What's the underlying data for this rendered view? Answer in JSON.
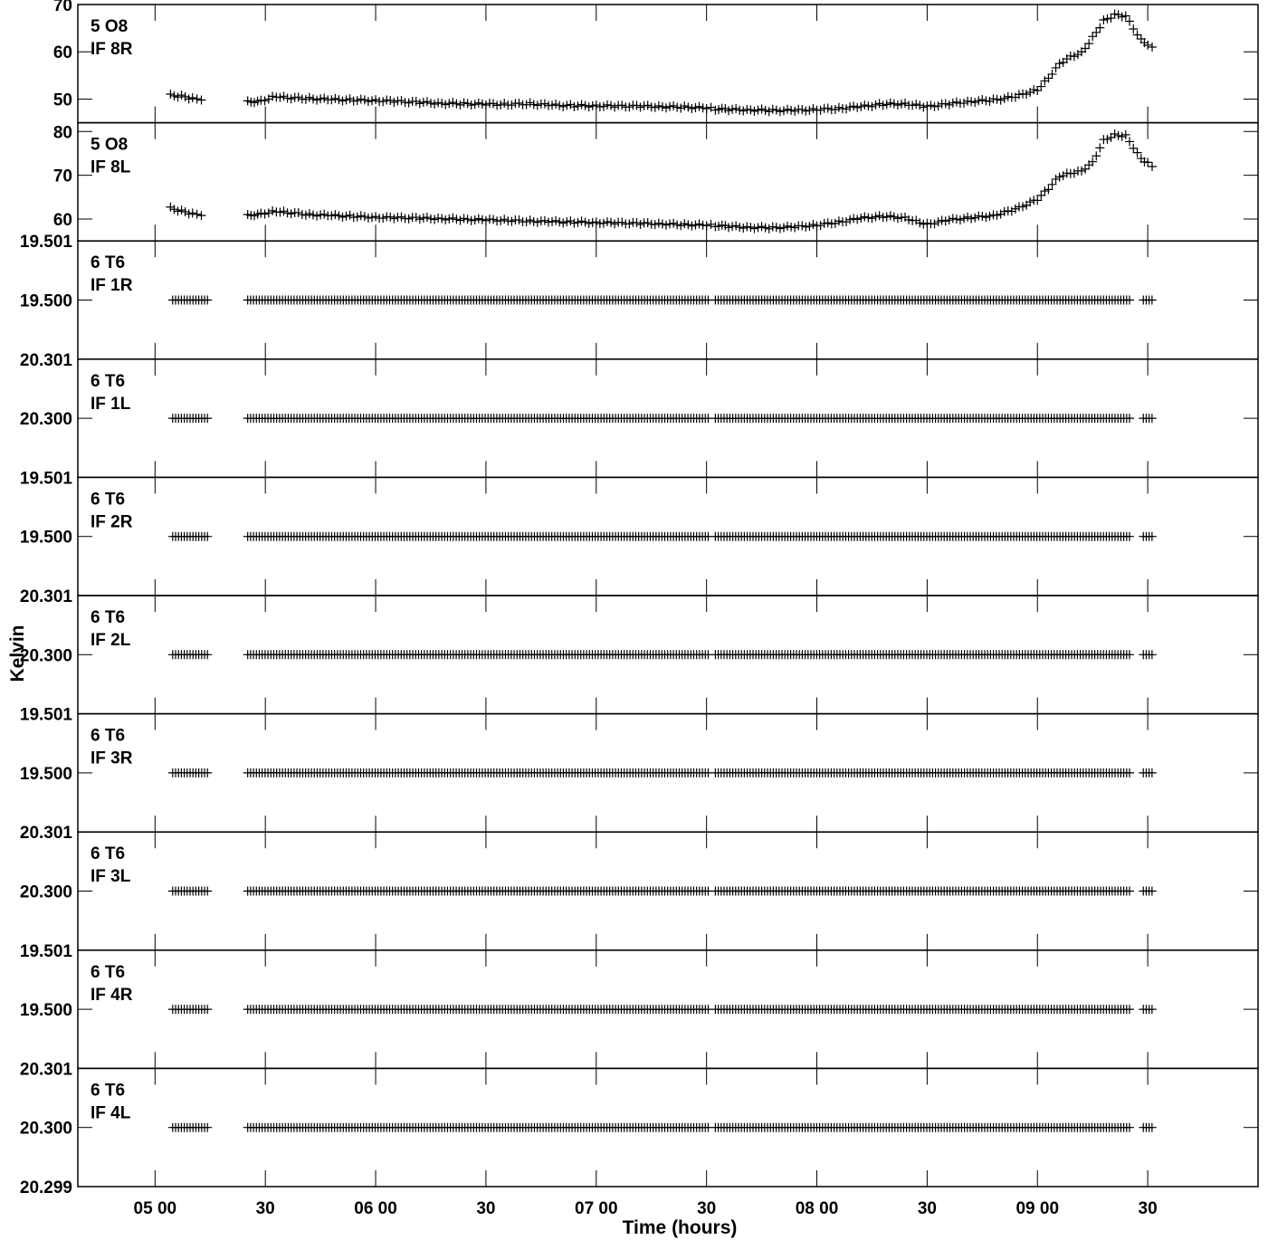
{
  "chart_data": {
    "type": "scatter",
    "xlabel": "Time (hours)",
    "ylabel": "Kelvin",
    "x_ticks": [
      {
        "t": 5.0,
        "label": "05 00"
      },
      {
        "t": 5.5,
        "label": "30"
      },
      {
        "t": 6.0,
        "label": "06 00"
      },
      {
        "t": 6.5,
        "label": "30"
      },
      {
        "t": 7.0,
        "label": "07 00"
      },
      {
        "t": 7.5,
        "label": "30"
      },
      {
        "t": 8.0,
        "label": "08 00"
      },
      {
        "t": 8.5,
        "label": "30"
      },
      {
        "t": 9.0,
        "label": "09 00"
      },
      {
        "t": 9.5,
        "label": "30"
      }
    ],
    "xlim": [
      4.65,
      10.0
    ],
    "panels": [
      {
        "antenna": "5 O8",
        "if": "IF 8R",
        "ylim": [
          45,
          70
        ],
        "yticks": [
          50,
          60,
          70
        ],
        "ytick_labels": [
          "50",
          "60",
          "70"
        ],
        "points": [
          [
            5.07,
            50.8
          ],
          [
            5.12,
            50.6
          ],
          [
            5.17,
            50.1
          ],
          [
            5.21,
            49.8
          ],
          [
            5.42,
            49.4
          ],
          [
            5.48,
            49.6
          ],
          [
            5.55,
            50.6
          ],
          [
            5.6,
            50.3
          ],
          [
            5.7,
            50.1
          ],
          [
            5.8,
            49.9
          ],
          [
            5.9,
            49.8
          ],
          [
            6.0,
            49.7
          ],
          [
            6.1,
            49.5
          ],
          [
            6.2,
            49.3
          ],
          [
            6.3,
            49.1
          ],
          [
            6.4,
            49.0
          ],
          [
            6.5,
            48.9
          ],
          [
            6.6,
            48.9
          ],
          [
            6.7,
            49.0
          ],
          [
            6.8,
            48.7
          ],
          [
            6.9,
            48.6
          ],
          [
            7.0,
            48.6
          ],
          [
            7.1,
            48.5
          ],
          [
            7.2,
            48.5
          ],
          [
            7.3,
            48.4
          ],
          [
            7.4,
            48.3
          ],
          [
            7.5,
            48.1
          ],
          [
            7.54,
            47.9
          ],
          [
            7.6,
            47.8
          ],
          [
            7.7,
            47.7
          ],
          [
            7.8,
            47.6
          ],
          [
            7.9,
            47.6
          ],
          [
            8.0,
            47.8
          ],
          [
            8.1,
            48.0
          ],
          [
            8.2,
            48.4
          ],
          [
            8.3,
            48.9
          ],
          [
            8.4,
            49.0
          ],
          [
            8.5,
            48.4
          ],
          [
            8.6,
            49.0
          ],
          [
            8.7,
            49.5
          ],
          [
            8.8,
            49.8
          ],
          [
            8.9,
            50.5
          ],
          [
            9.0,
            52.0
          ],
          [
            9.05,
            54.5
          ],
          [
            9.1,
            57.5
          ],
          [
            9.15,
            59.0
          ],
          [
            9.2,
            59.8
          ],
          [
            9.25,
            63.0
          ],
          [
            9.3,
            66.5
          ],
          [
            9.35,
            67.8
          ],
          [
            9.4,
            67.5
          ],
          [
            9.47,
            62.5
          ],
          [
            9.5,
            61.5
          ],
          [
            9.52,
            61.0
          ]
        ]
      },
      {
        "antenna": "5 O8",
        "if": "IF 8L",
        "ylim": [
          55,
          82
        ],
        "yticks": [
          60,
          70,
          80
        ],
        "ytick_labels": [
          "60",
          "70",
          "80"
        ],
        "points": [
          [
            5.07,
            62.5
          ],
          [
            5.12,
            61.8
          ],
          [
            5.17,
            61.2
          ],
          [
            5.21,
            60.8
          ],
          [
            5.42,
            60.8
          ],
          [
            5.48,
            61.2
          ],
          [
            5.55,
            61.8
          ],
          [
            5.6,
            61.5
          ],
          [
            5.7,
            61.0
          ],
          [
            5.8,
            60.8
          ],
          [
            5.9,
            60.6
          ],
          [
            6.0,
            60.4
          ],
          [
            6.1,
            60.3
          ],
          [
            6.2,
            60.2
          ],
          [
            6.3,
            60.1
          ],
          [
            6.4,
            59.9
          ],
          [
            6.5,
            59.8
          ],
          [
            6.6,
            59.7
          ],
          [
            6.7,
            59.5
          ],
          [
            6.8,
            59.4
          ],
          [
            6.9,
            59.3
          ],
          [
            7.0,
            59.2
          ],
          [
            7.1,
            59.1
          ],
          [
            7.2,
            59.0
          ],
          [
            7.3,
            58.9
          ],
          [
            7.4,
            58.7
          ],
          [
            7.5,
            58.6
          ],
          [
            7.54,
            58.5
          ],
          [
            7.6,
            58.3
          ],
          [
            7.7,
            58.1
          ],
          [
            7.8,
            58.0
          ],
          [
            7.9,
            58.2
          ],
          [
            8.0,
            58.6
          ],
          [
            8.1,
            59.3
          ],
          [
            8.2,
            60.2
          ],
          [
            8.3,
            60.6
          ],
          [
            8.4,
            60.3
          ],
          [
            8.45,
            59.5
          ],
          [
            8.5,
            58.8
          ],
          [
            8.6,
            59.8
          ],
          [
            8.7,
            60.3
          ],
          [
            8.8,
            60.8
          ],
          [
            8.9,
            62.2
          ],
          [
            9.0,
            64.5
          ],
          [
            9.05,
            67.0
          ],
          [
            9.1,
            69.8
          ],
          [
            9.15,
            70.5
          ],
          [
            9.2,
            71.0
          ],
          [
            9.25,
            73.0
          ],
          [
            9.3,
            78.0
          ],
          [
            9.35,
            79.2
          ],
          [
            9.4,
            79.0
          ],
          [
            9.47,
            73.8
          ],
          [
            9.5,
            72.8
          ],
          [
            9.52,
            72.0
          ]
        ]
      },
      {
        "antenna": "6 T6",
        "if": "IF 1R",
        "ylim": [
          19.499,
          19.501
        ],
        "yticks": [
          19.5,
          19.501
        ],
        "ytick_labels": [
          "19.500",
          "19.501"
        ],
        "const": 19.5
      },
      {
        "antenna": "6 T6",
        "if": "IF 1L",
        "ylim": [
          20.299,
          20.301
        ],
        "yticks": [
          20.3,
          20.301
        ],
        "ytick_labels": [
          "20.300",
          "20.301"
        ],
        "const": 20.3
      },
      {
        "antenna": "6 T6",
        "if": "IF 2R",
        "ylim": [
          19.499,
          19.501
        ],
        "yticks": [
          19.5,
          19.501
        ],
        "ytick_labels": [
          "19.500",
          "19.501"
        ],
        "const": 19.5
      },
      {
        "antenna": "6 T6",
        "if": "IF 2L",
        "ylim": [
          20.299,
          20.301
        ],
        "yticks": [
          20.3,
          20.301
        ],
        "ytick_labels": [
          "20.300",
          "20.301"
        ],
        "const": 20.3
      },
      {
        "antenna": "6 T6",
        "if": "IF 3R",
        "ylim": [
          19.499,
          19.501
        ],
        "yticks": [
          19.5,
          19.501
        ],
        "ytick_labels": [
          "19.500",
          "19.501"
        ],
        "const": 19.5
      },
      {
        "antenna": "6 T6",
        "if": "IF 3L",
        "ylim": [
          20.299,
          20.301
        ],
        "yticks": [
          20.3,
          20.301
        ],
        "ytick_labels": [
          "20.300",
          "20.301"
        ],
        "const": 20.3
      },
      {
        "antenna": "6 T6",
        "if": "IF 4R",
        "ylim": [
          19.499,
          19.501
        ],
        "yticks": [
          19.5,
          19.501
        ],
        "ytick_labels": [
          "19.500",
          "19.501"
        ],
        "const": 19.5
      },
      {
        "antenna": "6 T6",
        "if": "IF 4L",
        "ylim": [
          20.299,
          20.301
        ],
        "yticks": [
          20.299,
          20.3,
          20.301
        ],
        "ytick_labels": [
          "20.299",
          "20.300",
          "20.301"
        ],
        "const": 20.3
      }
    ],
    "time_segments": [
      [
        5.08,
        5.25
      ],
      [
        5.42,
        7.51
      ],
      [
        7.54,
        9.42
      ],
      [
        9.48,
        9.53
      ]
    ],
    "grid": false,
    "legend": "none"
  }
}
